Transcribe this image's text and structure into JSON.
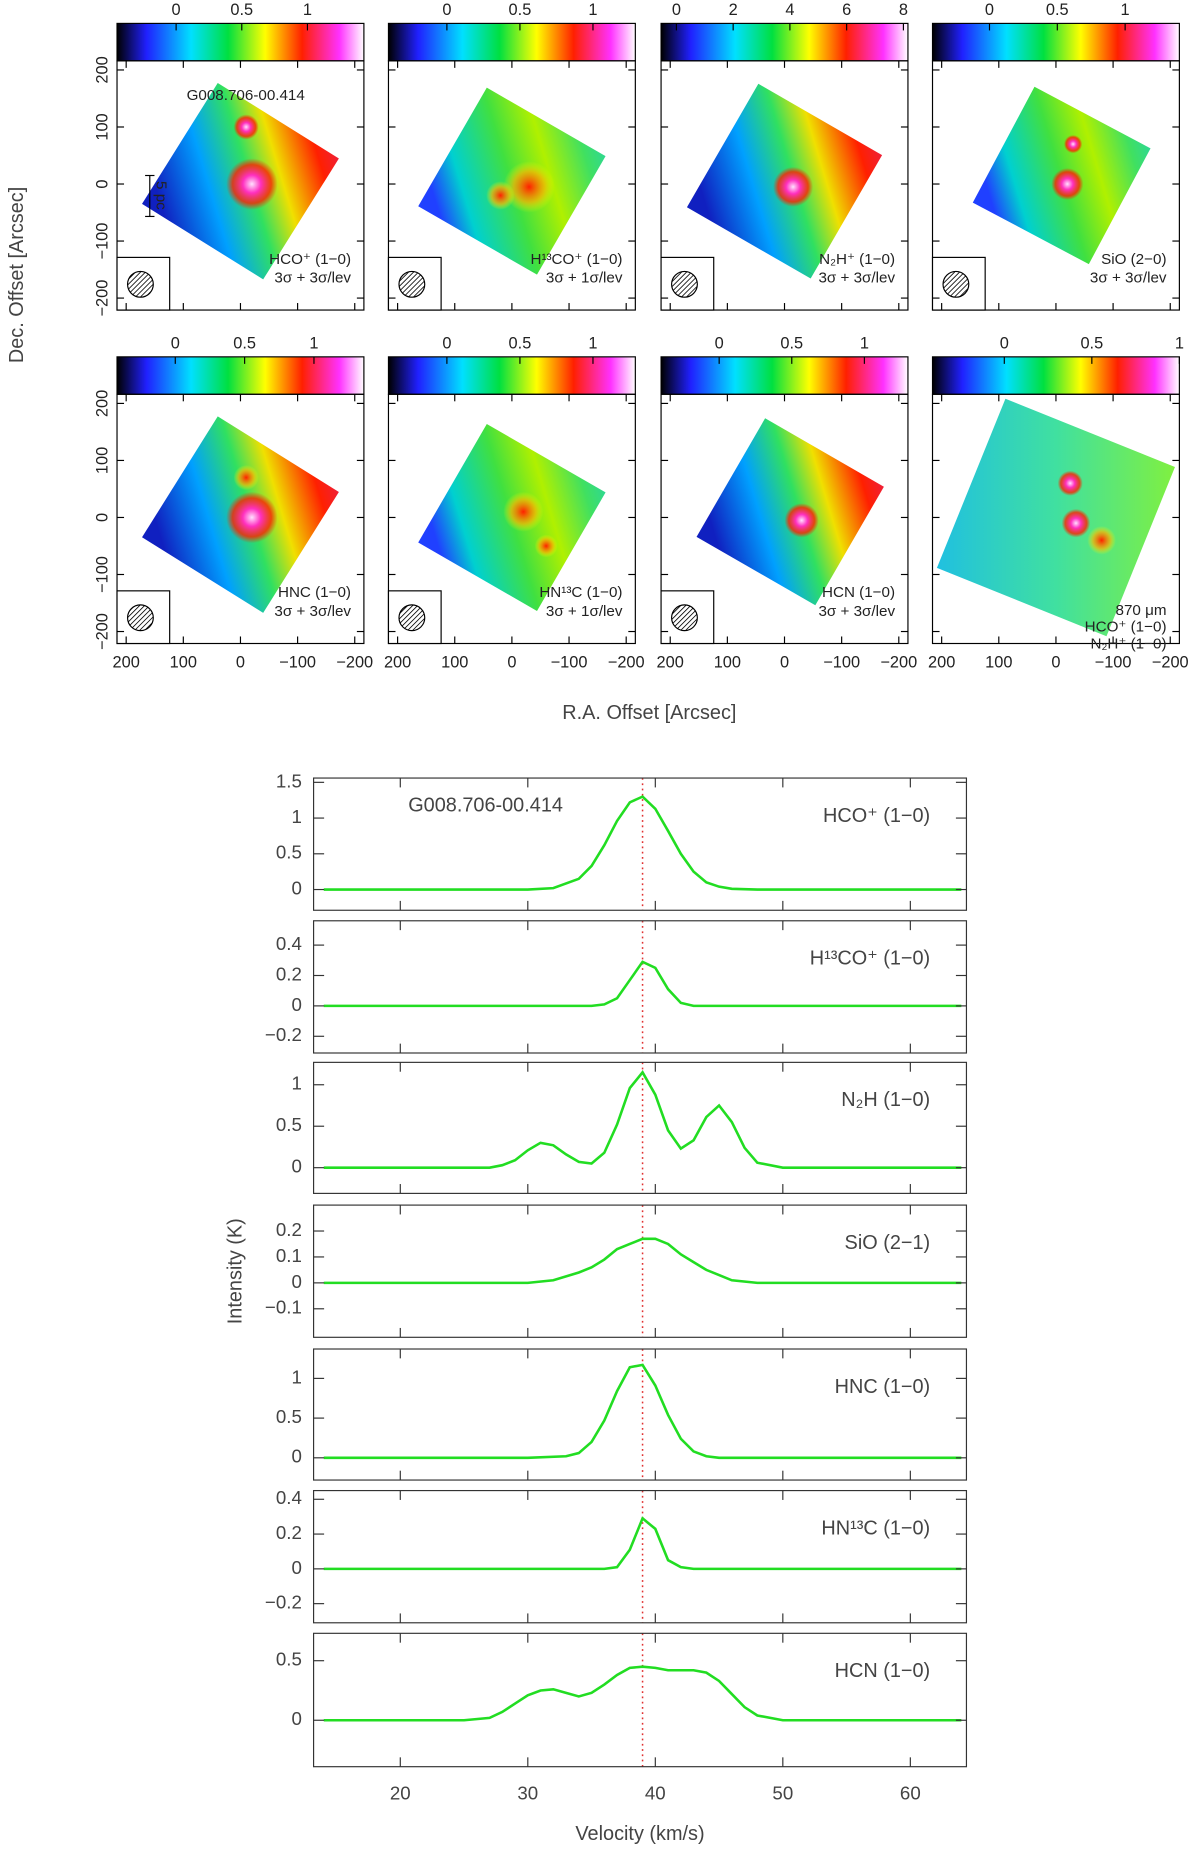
{
  "maps": {
    "xlabel": "R.A. Offset [Arcsec]",
    "ylabel": "Dec. Offset [Arcsec]",
    "xlim": [
      216,
      -216
    ],
    "xticks": [
      200,
      100,
      0,
      {
        "value": -100,
        "label": "−100"
      },
      {
        "value": -200,
        "label": "−200"
      }
    ],
    "ylim": [
      -221,
      216
    ],
    "yticks": [
      {
        "value": -200,
        "label": "−200"
      },
      {
        "value": -100,
        "label": "−100"
      },
      0,
      100,
      200
    ],
    "panels": [
      {
        "cbar_lim": [
          -0.45,
          1.43
        ],
        "cbar_ticks": [
          0,
          0.5,
          1
        ],
        "lines": [
          "HCO⁺ (1−0)",
          "3σ + 3σ/lev"
        ],
        "annotation": "G008.706-00.414",
        "scale_bar": "5 pc"
      },
      {
        "cbar_lim": [
          -0.4,
          1.29
        ],
        "cbar_ticks": [
          0,
          0.5,
          1
        ],
        "lines": [
          "H¹³CO⁺ (1−0)",
          "3σ + 1σ/lev"
        ]
      },
      {
        "cbar_lim": [
          -0.54,
          8.16
        ],
        "cbar_ticks": [
          0,
          2,
          4,
          6,
          8
        ],
        "lines": [
          "N₂H⁺ (1−0)",
          "3σ + 3σ/lev"
        ]
      },
      {
        "cbar_lim": [
          -0.42,
          1.4
        ],
        "cbar_ticks": [
          0,
          0.5,
          1
        ],
        "lines": [
          "SiO (2−0)",
          "3σ + 3σ/lev"
        ]
      },
      {
        "cbar_lim": [
          -0.42,
          1.36
        ],
        "cbar_ticks": [
          0,
          0.5,
          1
        ],
        "lines": [
          "HNC (1−0)",
          "3σ + 3σ/lev"
        ]
      },
      {
        "cbar_lim": [
          -0.4,
          1.29
        ],
        "cbar_ticks": [
          0,
          0.5,
          1
        ],
        "lines": [
          "HN¹³C (1−0)",
          "3σ + 1σ/lev"
        ]
      },
      {
        "cbar_lim": [
          -0.4,
          1.3
        ],
        "cbar_ticks": [
          0,
          0.5,
          1
        ],
        "lines": [
          "HCN (1−0)",
          "3σ + 3σ/lev"
        ]
      },
      {
        "cbar_lim": [
          -0.41,
          1.0
        ],
        "cbar_ticks": [
          0,
          0.5,
          1
        ],
        "lines": [
          "870 μm",
          "HCO⁺ (1−0)",
          "N₂H⁺ (1−0)"
        ]
      }
    ]
  },
  "chart_data": [
    {
      "type": "line",
      "title": "HCO⁺ (1−0)",
      "annotation": "G008.706-00.414",
      "xlim": [
        13.2,
        64.4
      ],
      "xticks": [
        20,
        30,
        40,
        50,
        60
      ],
      "ylim": [
        -0.29,
        1.56
      ],
      "yticks": [
        0,
        0.5,
        1,
        1.5
      ],
      "vline": 39,
      "series": [
        {
          "color": "#22dd22",
          "x": [
            14,
            20,
            25,
            30,
            32,
            34,
            35,
            36,
            37,
            38,
            39,
            40,
            41,
            42,
            43,
            44,
            45,
            46,
            48,
            55,
            64
          ],
          "values": [
            0,
            0,
            0,
            0,
            0.02,
            0.15,
            0.33,
            0.62,
            0.96,
            1.22,
            1.3,
            1.13,
            0.82,
            0.5,
            0.25,
            0.1,
            0.04,
            0.01,
            0,
            0,
            0
          ]
        }
      ]
    },
    {
      "type": "line",
      "title": "H¹³CO⁺ (1−0)",
      "xlim": [
        13.2,
        64.4
      ],
      "xticks": [
        20,
        30,
        40,
        50,
        60
      ],
      "ylim": [
        -0.31,
        0.56
      ],
      "yticks": [
        {
          "value": -0.2,
          "label": "−0.2"
        },
        0,
        0.2,
        0.4
      ],
      "vline": 39,
      "series": [
        {
          "color": "#22dd22",
          "x": [
            14,
            20,
            30,
            35,
            36,
            37,
            38,
            39,
            40,
            41,
            42,
            43,
            50,
            64
          ],
          "values": [
            0,
            0,
            0,
            0,
            0.01,
            0.05,
            0.17,
            0.29,
            0.25,
            0.11,
            0.02,
            0,
            0,
            0
          ]
        }
      ]
    },
    {
      "type": "line",
      "title": "N₂H (1−0)",
      "xlim": [
        13.2,
        64.4
      ],
      "xticks": [
        20,
        30,
        40,
        50,
        60
      ],
      "ylim": [
        -0.31,
        1.27
      ],
      "yticks": [
        0,
        0.5,
        1
      ],
      "vline": 39,
      "series": [
        {
          "color": "#22dd22",
          "x": [
            14,
            20,
            25,
            27,
            28,
            29,
            30,
            31,
            32,
            33,
            34,
            35,
            36,
            37,
            38,
            39,
            40,
            41,
            42,
            43,
            44,
            45,
            46,
            47,
            48,
            50,
            55,
            64
          ],
          "values": [
            0,
            0,
            0,
            0,
            0.03,
            0.09,
            0.21,
            0.3,
            0.27,
            0.16,
            0.07,
            0.05,
            0.18,
            0.52,
            0.96,
            1.15,
            0.88,
            0.45,
            0.23,
            0.33,
            0.61,
            0.75,
            0.55,
            0.24,
            0.06,
            0,
            0,
            0
          ]
        }
      ]
    },
    {
      "type": "line",
      "title": "SiO (2−1)",
      "ylabel": "Intensity (K)",
      "xlim": [
        13.2,
        64.4
      ],
      "xticks": [
        20,
        30,
        40,
        50,
        60
      ],
      "ylim": [
        -0.21,
        0.3
      ],
      "yticks": [
        {
          "value": -0.1,
          "label": "−0.1"
        },
        0,
        0.1,
        0.2
      ],
      "vline": 39,
      "series": [
        {
          "color": "#22dd22",
          "x": [
            14,
            20,
            30,
            32,
            34,
            35,
            36,
            37,
            38,
            39,
            40,
            41,
            42,
            43,
            44,
            45,
            46,
            48,
            55,
            64
          ],
          "values": [
            0,
            0,
            0,
            0.01,
            0.04,
            0.06,
            0.09,
            0.13,
            0.15,
            0.17,
            0.17,
            0.15,
            0.11,
            0.08,
            0.05,
            0.03,
            0.01,
            0,
            0,
            0
          ]
        }
      ]
    },
    {
      "type": "line",
      "title": "HNC (1−0)",
      "xlim": [
        13.2,
        64.4
      ],
      "xticks": [
        20,
        30,
        40,
        50,
        60
      ],
      "ylim": [
        -0.28,
        1.37
      ],
      "yticks": [
        0,
        0.5,
        1
      ],
      "vline": 39,
      "series": [
        {
          "color": "#22dd22",
          "x": [
            14,
            20,
            30,
            33,
            34,
            35,
            36,
            37,
            38,
            39,
            40,
            41,
            42,
            43,
            44,
            45,
            50,
            64
          ],
          "values": [
            0,
            0,
            0,
            0.02,
            0.06,
            0.2,
            0.47,
            0.84,
            1.14,
            1.17,
            0.91,
            0.54,
            0.24,
            0.08,
            0.02,
            0,
            0,
            0
          ]
        }
      ]
    },
    {
      "type": "line",
      "title": "HN¹³C (1−0)",
      "xlim": [
        13.2,
        64.4
      ],
      "xticks": [
        20,
        30,
        40,
        50,
        60
      ],
      "ylim": [
        -0.31,
        0.45
      ],
      "yticks": [
        {
          "value": -0.2,
          "label": "−0.2"
        },
        0,
        0.2,
        0.4
      ],
      "vline": 39,
      "series": [
        {
          "color": "#22dd22",
          "x": [
            14,
            20,
            30,
            36,
            37,
            38,
            39,
            40,
            41,
            42,
            43,
            50,
            64
          ],
          "values": [
            0,
            0,
            0,
            0,
            0.01,
            0.11,
            0.29,
            0.23,
            0.05,
            0.01,
            0,
            0,
            0
          ]
        }
      ]
    },
    {
      "type": "line",
      "title": "HCN (1−0)",
      "xlabel": "Velocity (km/s)",
      "xlim": [
        13.2,
        64.4
      ],
      "xticks": [
        20,
        30,
        40,
        50,
        60
      ],
      "ylim": [
        -0.39,
        0.73
      ],
      "yticks": [
        0,
        0.5
      ],
      "vline": 39,
      "series": [
        {
          "color": "#22dd22",
          "x": [
            14,
            20,
            25,
            27,
            28,
            29,
            30,
            31,
            32,
            33,
            34,
            35,
            36,
            37,
            38,
            39,
            40,
            41,
            42,
            43,
            44,
            45,
            46,
            47,
            48,
            50,
            55,
            64
          ],
          "values": [
            0,
            0,
            0,
            0.02,
            0.07,
            0.14,
            0.21,
            0.25,
            0.26,
            0.23,
            0.2,
            0.23,
            0.3,
            0.38,
            0.44,
            0.45,
            0.44,
            0.42,
            0.42,
            0.42,
            0.4,
            0.33,
            0.22,
            0.11,
            0.04,
            0,
            0,
            0
          ]
        }
      ]
    }
  ]
}
